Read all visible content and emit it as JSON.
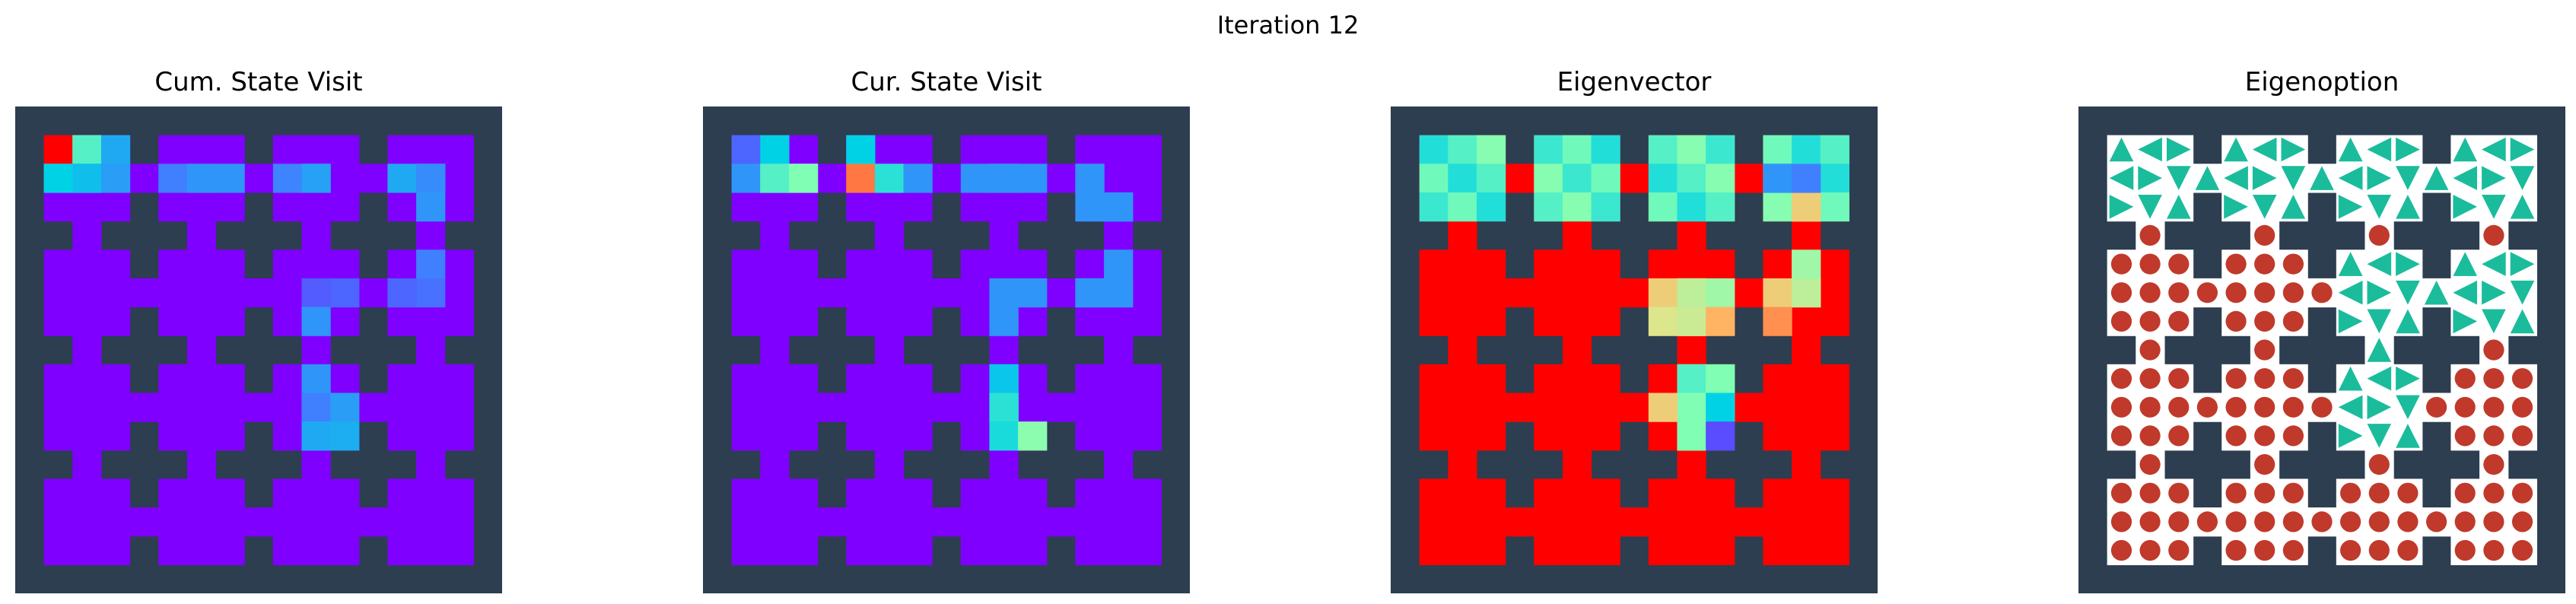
{
  "figure": {
    "suptitle": "Iteration 12"
  },
  "colors": {
    "wall": "#2c3e50",
    "free": "#ffffff",
    "option_arrow": "#1abc9c",
    "terminal_dot": "#c0392b"
  },
  "chart_data": [
    {
      "type": "heatmap",
      "title": "Cum. State Visit",
      "colormap": "rainbow",
      "grid_size": [
        16,
        16
      ],
      "layout": "4x4 rooms of 3x3 cells connected by doorways; walls drawn in dark slate",
      "high_cells": [
        [
          0,
          0,
          1.0
        ],
        [
          1,
          0,
          0.72
        ],
        [
          2,
          0,
          0.55
        ],
        [
          0,
          1,
          0.5
        ],
        [
          0,
          2,
          0.45
        ],
        [
          1,
          1,
          0.48
        ],
        [
          1,
          2,
          0.5
        ],
        [
          2,
          1,
          0.42
        ],
        [
          2,
          2,
          0.4
        ],
        [
          3,
          0,
          0.35
        ],
        [
          3,
          1,
          0.32
        ],
        [
          4,
          1,
          0.25
        ],
        [
          5,
          1,
          0.28
        ],
        [
          6,
          1,
          0.3
        ],
        [
          7,
          1,
          0.3
        ],
        [
          8,
          1,
          0.26
        ],
        [
          9,
          1,
          0.3
        ],
        [
          10,
          1,
          0.33
        ],
        [
          12,
          1,
          0.35
        ],
        [
          13,
          1,
          0.35
        ],
        [
          14,
          1,
          0.34
        ],
        [
          13,
          2,
          0.3
        ],
        [
          14,
          2,
          0.28
        ],
        [
          13,
          3,
          0.3
        ],
        [
          13,
          4,
          0.25
        ],
        [
          13,
          5,
          0.22
        ],
        [
          12,
          5,
          0.2
        ],
        [
          11,
          5,
          0.2
        ],
        [
          10,
          6,
          0.18
        ],
        [
          9,
          6,
          0.18
        ],
        [
          10,
          7,
          0.3
        ],
        [
          10,
          8,
          0.3
        ],
        [
          10,
          9,
          0.38
        ],
        [
          10,
          10,
          0.3
        ],
        [
          9,
          10,
          0.25
        ],
        [
          11,
          10,
          0.32
        ],
        [
          9,
          11,
          0.28
        ],
        [
          10,
          11,
          0.35
        ],
        [
          11,
          11,
          0.36
        ]
      ],
      "background_value": 0.0
    },
    {
      "type": "heatmap",
      "title": "Cur. State Visit",
      "colormap": "rainbow",
      "grid_size": [
        16,
        16
      ],
      "high_cells": [
        [
          0,
          0,
          0.2
        ],
        [
          1,
          0,
          0.45
        ],
        [
          0,
          1,
          0.3
        ],
        [
          1,
          1,
          0.2
        ],
        [
          2,
          1,
          0.75
        ],
        [
          3,
          1,
          0.8
        ],
        [
          4,
          1,
          1.0
        ],
        [
          4,
          0,
          0.45
        ],
        [
          4,
          2,
          0.9
        ],
        [
          2,
          2,
          0.45
        ],
        [
          1,
          2,
          0.55
        ],
        [
          3,
          2,
          0.6
        ],
        [
          5,
          1,
          0.3
        ],
        [
          6,
          2,
          0.5
        ],
        [
          7,
          2,
          0.3
        ],
        [
          8,
          2,
          0.3
        ],
        [
          9,
          2,
          0.3
        ],
        [
          9,
          1,
          0.3
        ],
        [
          10,
          1,
          0.3
        ],
        [
          11,
          1,
          0.3
        ],
        [
          12,
          1,
          0.3
        ],
        [
          12,
          2,
          0.3
        ],
        [
          12,
          3,
          0.3
        ],
        [
          13,
          3,
          0.3
        ],
        [
          14,
          3,
          0.3
        ],
        [
          14,
          4,
          0.3
        ],
        [
          14,
          5,
          0.3
        ],
        [
          13,
          5,
          0.3
        ],
        [
          12,
          5,
          0.3
        ],
        [
          12,
          6,
          0.3
        ],
        [
          11,
          6,
          0.3
        ],
        [
          10,
          6,
          0.3
        ],
        [
          10,
          7,
          0.3
        ],
        [
          10,
          8,
          0.3
        ],
        [
          9,
          8,
          0.42
        ],
        [
          9,
          9,
          0.42
        ],
        [
          10,
          9,
          0.42
        ],
        [
          9,
          10,
          0.42
        ],
        [
          10,
          10,
          0.5
        ],
        [
          10,
          11,
          0.48
        ],
        [
          11,
          11,
          0.62
        ]
      ],
      "background_value": 0.0
    },
    {
      "type": "heatmap",
      "title": "Eigenvector",
      "colormap": "rainbow",
      "grid_size": [
        16,
        16
      ],
      "top_band_value": 0.55,
      "lower_rooms_value": 1.0,
      "corridor_cells": [
        [
          9,
          5,
          0.75
        ],
        [
          8,
          6,
          0.8
        ],
        [
          9,
          6,
          0.8
        ],
        [
          10,
          6,
          0.7
        ],
        [
          11,
          6,
          0.65
        ],
        [
          12,
          6,
          0.8
        ],
        [
          8,
          7,
          0.75
        ],
        [
          9,
          7,
          0.78
        ],
        [
          10,
          7,
          0.72
        ],
        [
          11,
          7,
          0.85
        ],
        [
          12,
          7,
          0.88
        ],
        [
          13,
          6,
          0.85
        ],
        [
          13,
          5,
          0.7
        ],
        [
          14,
          4,
          0.65
        ],
        [
          14,
          3,
          0.7
        ],
        [
          13,
          3,
          0.8
        ],
        [
          12,
          2,
          0.45
        ],
        [
          12,
          1,
          0.3
        ],
        [
          13,
          1,
          0.25
        ],
        [
          9,
          8,
          0.6
        ],
        [
          10,
          8,
          0.55
        ],
        [
          11,
          8,
          0.6
        ],
        [
          9,
          9,
          0.6
        ],
        [
          10,
          9,
          0.55
        ],
        [
          11,
          9,
          0.62
        ],
        [
          9,
          10,
          0.7
        ],
        [
          10,
          10,
          0.6
        ],
        [
          11,
          10,
          0.45
        ],
        [
          9,
          11,
          0.75
        ],
        [
          10,
          11,
          0.6
        ],
        [
          11,
          11,
          0.15
        ],
        [
          8,
          10,
          0.8
        ]
      ]
    },
    {
      "type": "heatmap",
      "title": "Eigenoption",
      "grid_size": [
        16,
        16
      ],
      "encoding": "triangles = option actions, circles = termination states"
    }
  ]
}
